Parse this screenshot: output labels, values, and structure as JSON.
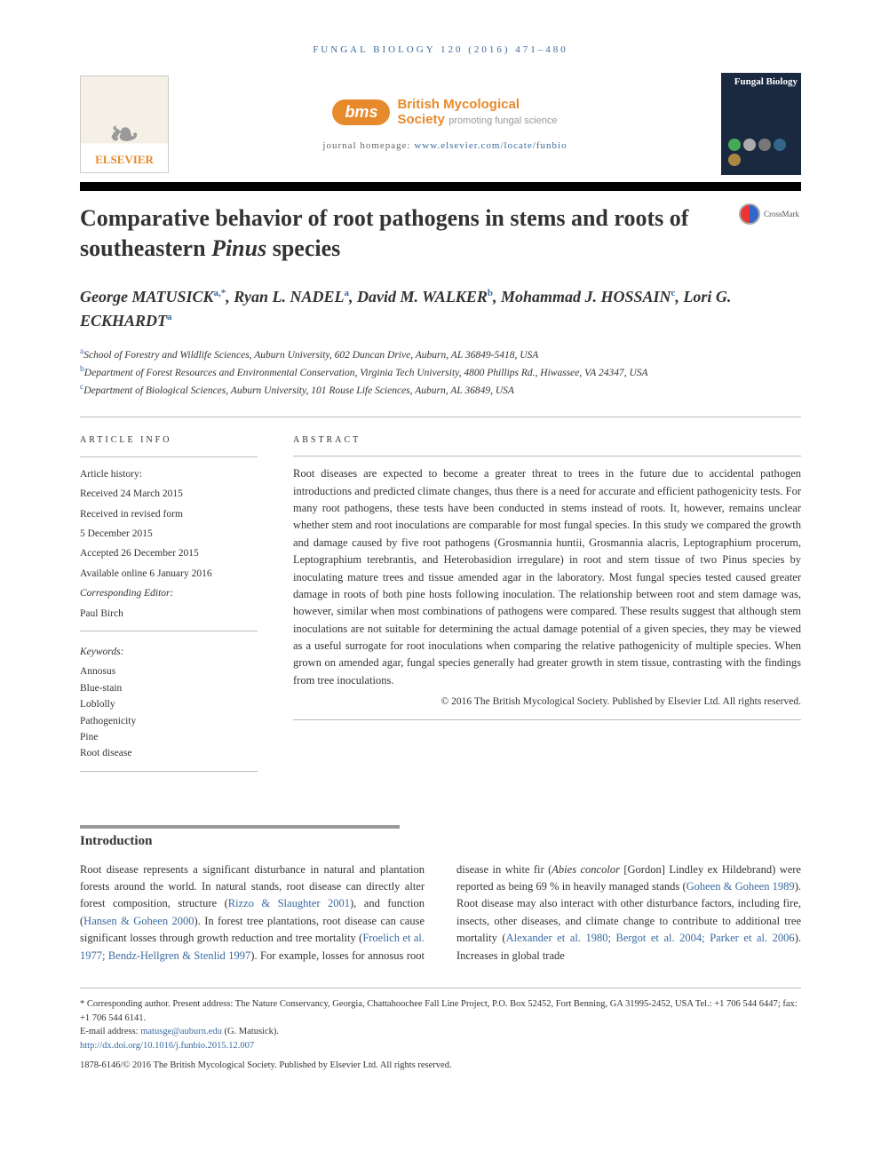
{
  "journal_ref": "FUNGAL BIOLOGY 120 (2016) 471–480",
  "publisher_logo_text": "ELSEVIER",
  "society": {
    "short": "bms",
    "name": "British Mycological",
    "sub": "Society",
    "tag": "promoting fungal science"
  },
  "homepage_label": "journal homepage: ",
  "homepage_url": "www.elsevier.com/locate/funbio",
  "cover_title": "Fungal Biology",
  "crossmark_label": "CrossMark",
  "title_pre": "Comparative behavior of root pathogens in stems and roots of southeastern ",
  "title_em": "Pinus",
  "title_post": " species",
  "authors_html": "George MATUSICK<sup>a,*</sup>, Ryan L. NADEL<sup>a</sup>, David M. WALKER<sup>b</sup>, Mohammad J. HOSSAIN<sup>c</sup>, Lori G. ECKHARDT<sup>a</sup>",
  "affiliations": [
    {
      "s": "a",
      "t": "School of Forestry and Wildlife Sciences, Auburn University, 602 Duncan Drive, Auburn, AL 36849-5418, USA"
    },
    {
      "s": "b",
      "t": "Department of Forest Resources and Environmental Conservation, Virginia Tech University, 4800 Phillips Rd., Hiwassee, VA 24347, USA"
    },
    {
      "s": "c",
      "t": "Department of Biological Sciences, Auburn University, 101 Rouse Life Sciences, Auburn, AL 36849, USA"
    }
  ],
  "info_heading": "ARTICLE INFO",
  "abstract_heading": "ABSTRACT",
  "history": {
    "h": "Article history:",
    "received": "Received 24 March 2015",
    "revised1": "Received in revised form",
    "revised2": "5 December 2015",
    "accepted": "Accepted 26 December 2015",
    "online": "Available online 6 January 2016",
    "ce_label": "Corresponding Editor:",
    "ce_name": "Paul Birch"
  },
  "kw_label": "Keywords:",
  "keywords": [
    "Annosus",
    "Blue-stain",
    "Loblolly",
    "Pathogenicity",
    "Pine",
    "Root disease"
  ],
  "abstract": "Root diseases are expected to become a greater threat to trees in the future due to accidental pathogen introductions and predicted climate changes, thus there is a need for accurate and efficient pathogenicity tests. For many root pathogens, these tests have been conducted in stems instead of roots. It, however, remains unclear whether stem and root inoculations are comparable for most fungal species. In this study we compared the growth and damage caused by five root pathogens (Grosmannia huntii, Grosmannia alacris, Leptographium procerum, Leptographium terebrantis, and Heterobasidion irregulare) in root and stem tissue of two Pinus species by inoculating mature trees and tissue amended agar in the laboratory. Most fungal species tested caused greater damage in roots of both pine hosts following inoculation. The relationship between root and stem damage was, however, similar when most combinations of pathogens were compared. These results suggest that although stem inoculations are not suitable for determining the actual damage potential of a given species, they may be viewed as a useful surrogate for root inoculations when comparing the relative pathogenicity of multiple species. When grown on amended agar, fungal species generally had greater growth in stem tissue, contrasting with the findings from tree inoculations.",
  "abstract_copyright": "© 2016 The British Mycological Society. Published by Elsevier Ltd. All rights reserved.",
  "intro_heading": "Introduction",
  "intro_body_html": "Root disease represents a significant disturbance in natural and plantation forests around the world. In natural stands, root disease can directly alter forest composition, structure (<a href='#'>Rizzo & Slaughter 2001</a>), and function (<a href='#'>Hansen & Goheen 2000</a>). In forest tree plantations, root disease can cause significant losses through growth reduction and tree mortality (<a href='#'>Froelich et al. 1977; Bendz-Hellgren & Stenlid 1997</a>). For example, losses for annosus root disease in white fir (<em>Abies concolor</em> [Gordon] Lindley ex Hildebrand) were reported as being 69 % in heavily managed stands (<a href='#'>Goheen & Goheen 1989</a>). Root disease may also interact with other disturbance factors, including fire, insects, other diseases, and climate change to contribute to additional tree mortality (<a href='#'>Alexander et al. 1980; Bergot et al. 2004; Parker et al. 2006</a>). Increases in global trade",
  "footnotes": {
    "corresponding": "* Corresponding author. Present address: The Nature Conservancy, Georgia, Chattahoochee Fall Line Project, P.O. Box 52452, Fort Benning, GA 31995-2452, USA Tel.: +1 706 544 6447; fax: +1 706 544 6141.",
    "email_label": "E-mail address: ",
    "email": "matusge@auburn.edu",
    "email_paren": " (G. Matusick).",
    "doi": "http://dx.doi.org/10.1016/j.funbio.2015.12.007",
    "issn": "1878-6146/© 2016 The British Mycological Society. Published by Elsevier Ltd. All rights reserved."
  },
  "colors": {
    "link": "#3a6aa0",
    "orange": "#e78a2b"
  }
}
